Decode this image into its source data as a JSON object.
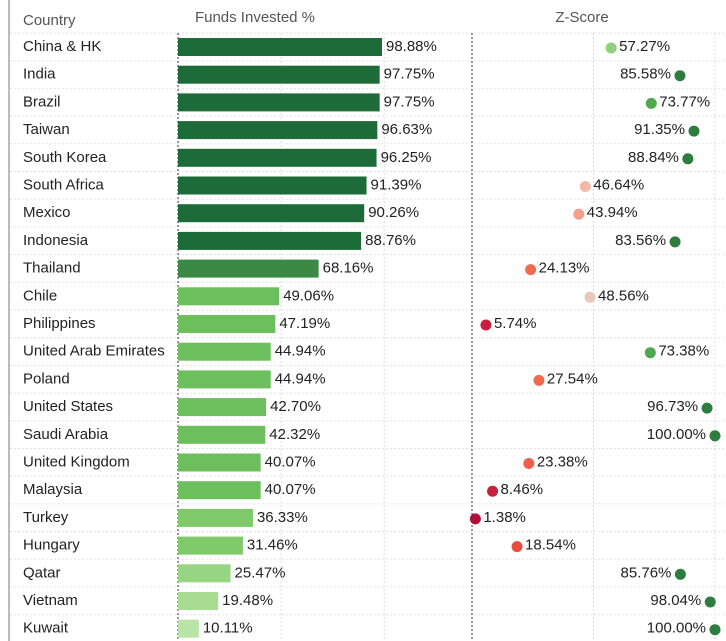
{
  "chart_data": {
    "type": "bar",
    "category_label": "Country",
    "categories": [
      "China & HK",
      "India",
      "Brazil",
      "Taiwan",
      "South Korea",
      "South Africa",
      "Mexico",
      "Indonesia",
      "Thailand",
      "Chile",
      "Philippines",
      "United Arab Emirates",
      "Poland",
      "United States",
      "Saudi Arabia",
      "United Kingdom",
      "Malaysia",
      "Turkey",
      "Hungary",
      "Qatar",
      "Vietnam",
      "Kuwait"
    ],
    "xlim": [
      0,
      100
    ],
    "xticks": [
      0,
      50,
      100
    ],
    "series": [
      {
        "name": "Funds Invested %",
        "values": [
          98.88,
          97.75,
          97.75,
          96.63,
          96.25,
          91.39,
          90.26,
          88.76,
          68.16,
          49.06,
          47.19,
          44.94,
          44.94,
          42.7,
          42.32,
          40.07,
          40.07,
          36.33,
          31.46,
          25.47,
          19.48,
          10.11
        ],
        "value_labels": [
          "98.88%",
          "97.75%",
          "97.75%",
          "96.63%",
          "96.25%",
          "91.39%",
          "90.26%",
          "88.76%",
          "68.16%",
          "49.06%",
          "47.19%",
          "44.94%",
          "44.94%",
          "42.70%",
          "42.32%",
          "40.07%",
          "40.07%",
          "36.33%",
          "31.46%",
          "25.47%",
          "19.48%",
          "10.11%"
        ],
        "colors": [
          "#1e6b3a",
          "#1e6b3a",
          "#1e6b3a",
          "#1e6b3a",
          "#1e6b3a",
          "#1e6b3a",
          "#1e6b3a",
          "#1e6b3a",
          "#3a8a45",
          "#6cbf5c",
          "#6cbf5c",
          "#6cbf5c",
          "#6cbf5c",
          "#6cbf5c",
          "#6cbf5c",
          "#6cbf5c",
          "#6cbf5c",
          "#7fc96a",
          "#7fc96a",
          "#95d583",
          "#a8dc92",
          "#b8e4a6"
        ]
      },
      {
        "name": "Z-Score",
        "values": [
          57.27,
          85.58,
          73.77,
          91.35,
          88.84,
          46.64,
          43.94,
          83.56,
          24.13,
          48.56,
          5.74,
          73.38,
          27.54,
          96.73,
          100.0,
          23.38,
          8.46,
          1.38,
          18.54,
          85.76,
          98.04,
          100.0
        ],
        "value_labels": [
          "57.27%",
          "85.58%",
          "73.77%",
          "91.35%",
          "88.84%",
          "46.64%",
          "43.94%",
          "83.56%",
          "24.13%",
          "48.56%",
          "5.74%",
          "73.38%",
          "27.54%",
          "96.73%",
          "100.00%",
          "23.38%",
          "8.46%",
          "1.38%",
          "18.54%",
          "85.76%",
          "98.04%",
          "100.00%"
        ],
        "colors": [
          "#8fd07a",
          "#2e7d3e",
          "#4fa84e",
          "#2e7d3e",
          "#2e7d3e",
          "#f4b8a8",
          "#f5a08c",
          "#2e7d3e",
          "#f06a50",
          "#e8c8b8",
          "#c8203c",
          "#4fa84e",
          "#f06a50",
          "#2e7d3e",
          "#2e7d3e",
          "#f06050",
          "#c8203c",
          "#b0103a",
          "#e84c3c",
          "#2e7d3e",
          "#2e7d3e",
          "#2e7d3e"
        ]
      }
    ]
  }
}
